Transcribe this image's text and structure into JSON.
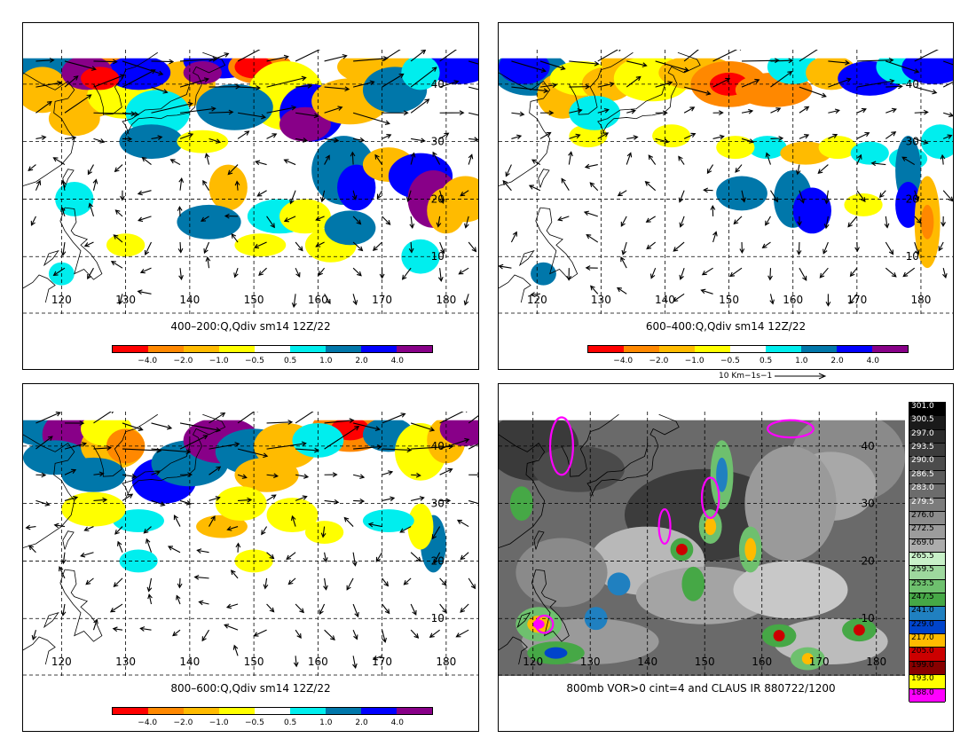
{
  "lon_labels": [
    "120",
    "130",
    "140",
    "150",
    "160",
    "170",
    "180"
  ],
  "lat_labels": [
    "10",
    "20",
    "30",
    "40"
  ],
  "colors": {
    "scale": [
      "#ff0000",
      "#ff8800",
      "#ffbb00",
      "#ffff00",
      "#ffffff",
      "#00eeee",
      "#0077aa",
      "#0000ff",
      "#880088"
    ],
    "ir_gray_dark": "#2a2a2a",
    "ir_gray_light": "#d8d8d8",
    "vor_contour": "#ff00ff"
  },
  "panels": [
    {
      "title": "400–200:Q,Qdiv sm14 12Z/22",
      "cbar_ticks": [
        "−4.0",
        "−2.0",
        "−1.0",
        "−0.5",
        "0.5",
        "1.0",
        "2.0",
        "4.0"
      ]
    },
    {
      "title": "600–400:Q,Qdiv sm14 12Z/22",
      "cbar_ticks": [
        "−4.0",
        "−2.0",
        "−1.0",
        "−0.5",
        "0.5",
        "1.0",
        "2.0",
        "4.0"
      ],
      "ref_vector_label": "10 Km−1s−1"
    },
    {
      "title": "800–600:Q,Qdiv sm14 12Z/22",
      "cbar_ticks": [
        "−4.0",
        "−2.0",
        "−1.0",
        "−0.5",
        "0.5",
        "1.0",
        "2.0",
        "4.0"
      ]
    },
    {
      "title": "800mb VOR>0 cint=4 and CLAUS IR 880722/1200"
    }
  ],
  "ir_scale": {
    "labels": [
      "301.0",
      "300.5",
      "297.0",
      "293.5",
      "290.0",
      "286.5",
      "283.0",
      "279.5",
      "276.0",
      "272.5",
      "269.0",
      "265.5",
      "259.5",
      "253.5",
      "247.5",
      "241.0",
      "229.0",
      "217.0",
      "205.0",
      "199.0",
      "193.0",
      "188.0"
    ],
    "colors": [
      "#000000",
      "#1a1a1a",
      "#2c2c2c",
      "#3c3c3c",
      "#4c4c4c",
      "#5c5c5c",
      "#6c6c6c",
      "#7c7c7c",
      "#8c8c8c",
      "#9c9c9c",
      "#acacac",
      "#c8f0c8",
      "#9ed89e",
      "#6ec06e",
      "#46a846",
      "#2080c0",
      "#0044cc",
      "#ffbb00",
      "#cc0000",
      "#880000",
      "#ffff00",
      "#ff00ff"
    ]
  }
}
